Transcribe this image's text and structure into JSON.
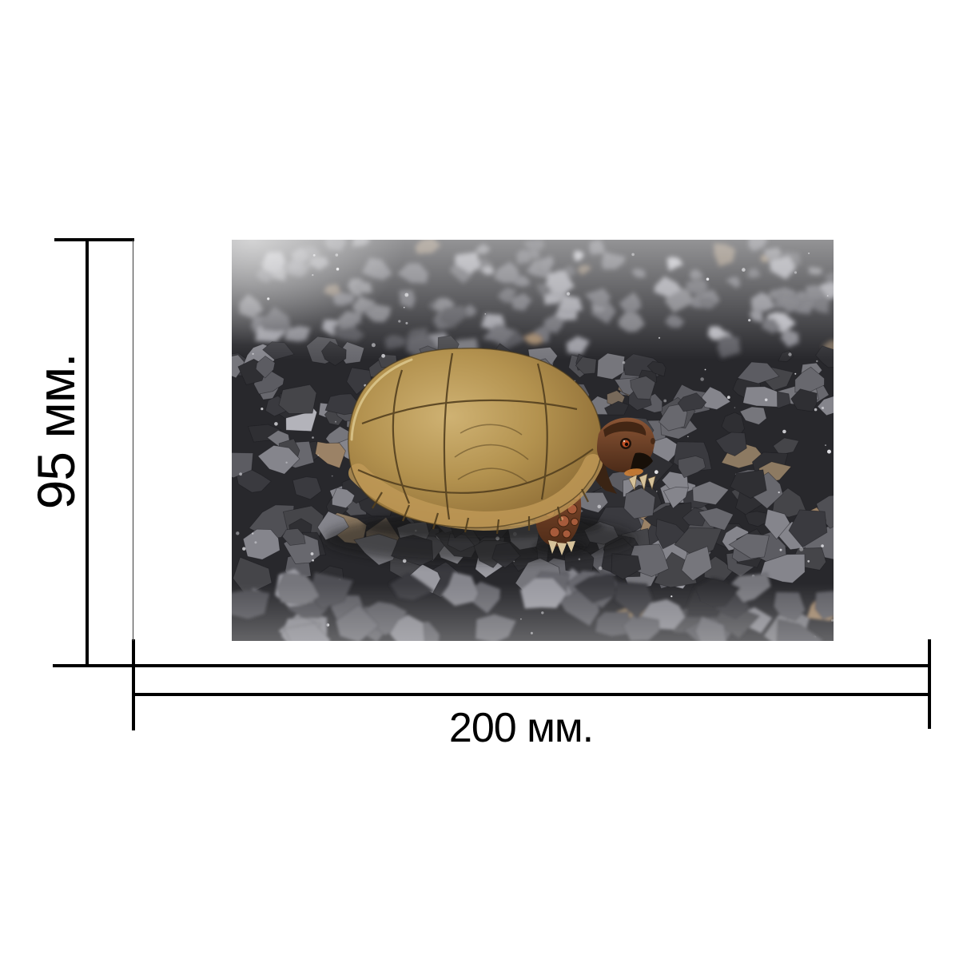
{
  "figure": {
    "height_label": "95 мм.",
    "width_label": "200 мм.",
    "height_value_mm": 95,
    "width_value_mm": 200,
    "unit": "мм.",
    "line_color": "#000000",
    "extension_line_color": "#3a3a3a",
    "background": "#ffffff",
    "photo": {
      "subject": "three-toed box turtle walking on gray crushed gravel",
      "gravel": {
        "background": "#28282c",
        "palette": [
          "#2f2f33",
          "#3a3a3f",
          "#454549",
          "#505055",
          "#5c5c62",
          "#68686e",
          "#76767c",
          "#85858c",
          "#9a9aa1",
          "#b3b3ba"
        ],
        "accent_palette": [
          "#8d7a62",
          "#9b8266",
          "#77695a"
        ],
        "speck": "#e2e2e6"
      },
      "turtle": {
        "shell_highlight": "#cfb273",
        "shell_mid": "#b3924f",
        "shell_shade": "#97763c",
        "shell_edge": "#7a5c2e",
        "outline": "#4a3a1e",
        "seam": "#54401f",
        "rim_light": "#ead9a2",
        "skirt": "#c09a58",
        "head_light": "#8a5535",
        "head_dark": "#4c2b18",
        "crown": "#3f2413",
        "eye_outer": "#20120a",
        "eye_iris": "#c14f24",
        "eye_pupil": "#120805",
        "beak": "#170f08",
        "jaw_accent": "#cf7f35",
        "neck_shadow": "#3a2414",
        "leg_light": "#8a4f30",
        "leg_dark": "#4f2c18",
        "scale": "#a75b3b",
        "scale_edge": "#40220f",
        "scale_highlight": "#d9996a",
        "claw": "#d6c29a",
        "plastron": "#caa75d",
        "shadow": "#121214"
      }
    }
  }
}
